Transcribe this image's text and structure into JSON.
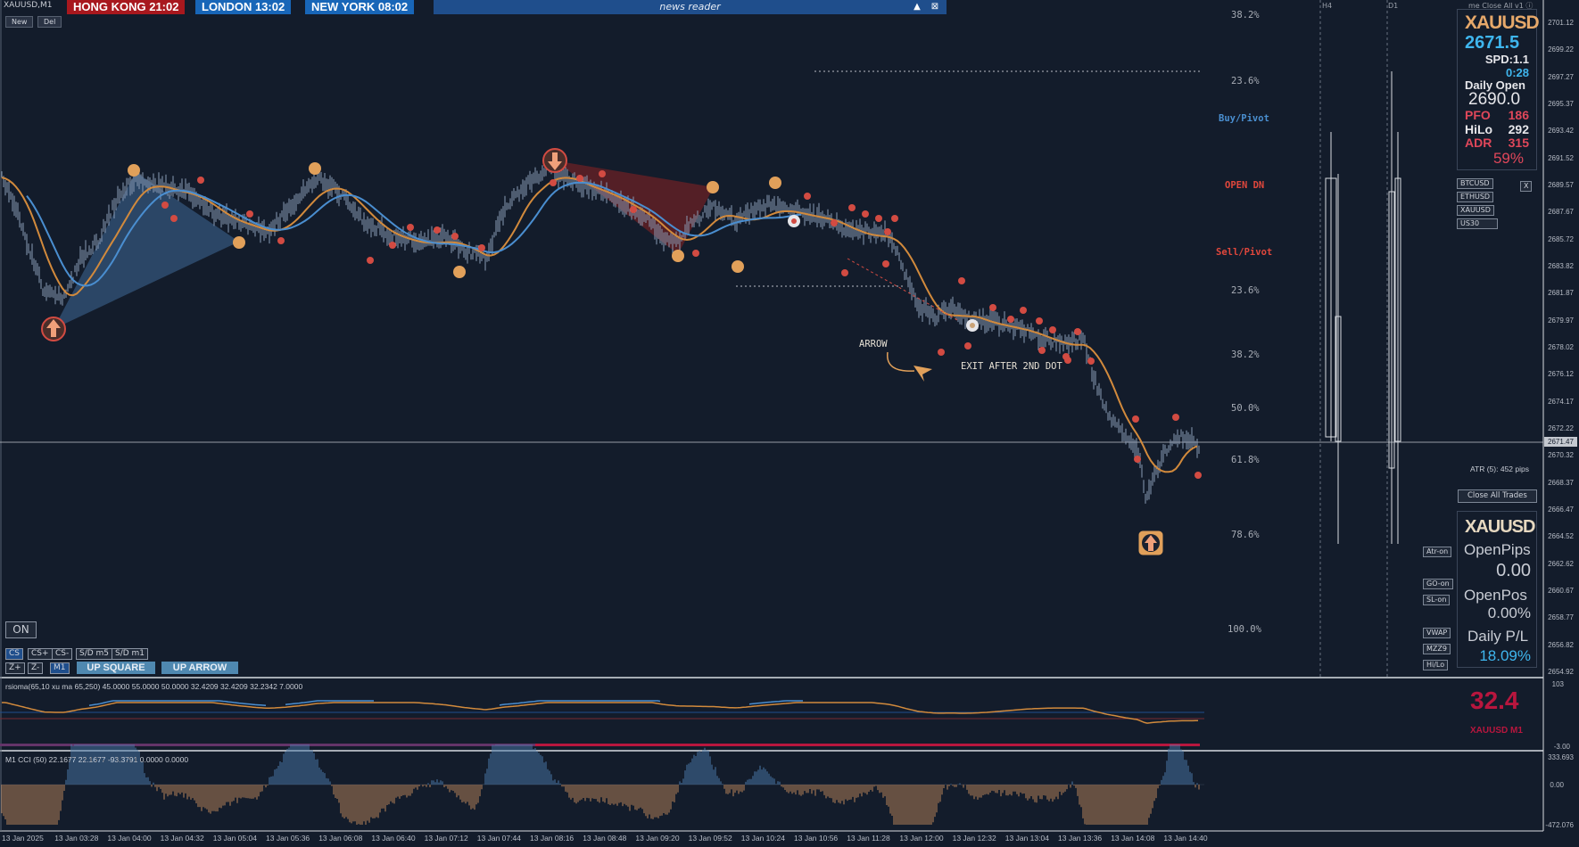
{
  "symbol_tf": "XAUUSD,M1",
  "sessions": [
    {
      "label": "HONG KONG 21:02",
      "color": "#a8181e"
    },
    {
      "label": "LONDON  13:02",
      "color": "#1866b8"
    },
    {
      "label": "NEW YORK  08:02",
      "color": "#1866b8"
    }
  ],
  "news_title": "news reader",
  "news_buttons": {
    "minimize": "▲",
    "close": "⊠"
  },
  "new_label": "New",
  "del_label": "Del",
  "top_right_text": "me Close All v1 ⓘ",
  "tf_labels": {
    "h4": "H4",
    "d1": "D1"
  },
  "info": {
    "symbol": "XAUUSD",
    "price": "2671.5",
    "spread": "SPD:1.1",
    "timer": "0:28",
    "daily_open_label": "Daily Open",
    "daily_open_value": "2690.0",
    "pfo_label": "PFO",
    "pfo_value": "186",
    "hilo_label": "HiLo",
    "hilo_value": "292",
    "adr_label": "ADR",
    "adr_value": "315",
    "adr_pct": "59%"
  },
  "symbols": [
    "BTCUSD",
    "ETHUSD",
    "XAUUSD",
    "US30"
  ],
  "symbols_close": "X",
  "atr_text": "ATR (5): 452 pips",
  "close_all_trades": "Close All Trades",
  "pos": {
    "symbol": "XAUUSD",
    "open_pips_label": "OpenPips",
    "open_pips_value": "0.00",
    "open_pos_label": "OpenPos",
    "open_pos_value": "0.00%",
    "daily_pl_label": "Daily P/L",
    "daily_pl_value": "18.09%"
  },
  "side_buttons": [
    "Atr-on",
    "GO-on",
    "SL-on",
    "VWAP",
    "MZZ9",
    "Hi/Lo"
  ],
  "fib_levels_upper": [
    "38.2%",
    "23.6%"
  ],
  "pivots": [
    {
      "label": "Buy/Pivot",
      "color": "#4a8fd0"
    },
    {
      "label": "OPEN DN",
      "color": "#e0473c"
    },
    {
      "label": "Sell/Pivot",
      "color": "#e0473c"
    }
  ],
  "fib_levels_lower": [
    "23.6%",
    "38.2%",
    "50.0%",
    "61.8%",
    "78.6%",
    "100.0%"
  ],
  "annotations": {
    "arrow": "ARROW",
    "exit": "EXIT AFTER 2ND DOT"
  },
  "price_ticks": [
    "2701.12",
    "2699.22",
    "2697.27",
    "2695.37",
    "2693.42",
    "2691.52",
    "2689.57",
    "2687.67",
    "2685.72",
    "2683.82",
    "2681.87",
    "2679.97",
    "2678.02",
    "2676.12",
    "2674.17",
    "2672.22",
    "2670.32",
    "2668.37",
    "2666.47",
    "2664.52",
    "2662.62",
    "2660.67",
    "2658.77",
    "2656.82",
    "2654.92"
  ],
  "current_price_tag": "2671.47",
  "on_label": "ON",
  "bottom_buttons_row1": [
    "CS",
    "CS+",
    "CS-",
    "S/D m5",
    "S/D m1"
  ],
  "bottom_buttons_row2": [
    "Z+",
    "Z-",
    "M1"
  ],
  "up_square": "UP SQUARE",
  "up_arrow": "UP ARROW",
  "rsi": {
    "label": "rsioma(65,10 xu ma 65,250) 45.0000 55.0000 50.0000 32.4209 32.4209 32.2342 7.0000",
    "value": "32.4",
    "symbol": "XAUUSD M1",
    "scale_top": "103",
    "scale_bottom": "-3.00"
  },
  "cci": {
    "label": "M1 CCI (50) 22.1677 22.1677 -93.3791 0.0000 0.0000",
    "scale_top": "333.693",
    "scale_mid": "0.00",
    "scale_bottom": "-472.076"
  },
  "time_labels": [
    "13 Jan 2025",
    "13 Jan 03:28",
    "13 Jan 04:00",
    "13 Jan 04:32",
    "13 Jan 05:04",
    "13 Jan 05:36",
    "13 Jan 06:08",
    "13 Jan 06:40",
    "13 Jan 07:12",
    "13 Jan 07:44",
    "13 Jan 08:16",
    "13 Jan 08:48",
    "13 Jan 09:20",
    "13 Jan 09:52",
    "13 Jan 10:24",
    "13 Jan 10:56",
    "13 Jan 11:28",
    "13 Jan 12:00",
    "13 Jan 12:32",
    "13 Jan 13:04",
    "13 Jan 13:36",
    "13 Jan 14:08",
    "13 Jan 14:40"
  ],
  "colors": {
    "background": "#131c2b",
    "ema_fast": "#4a8ed0",
    "ema_slow": "#d28a3c",
    "buy_zone": "#3f6a98",
    "sell_zone": "#6b2026",
    "dot_red": "#d24b42",
    "dot_orange": "#e1a05a",
    "rsi_pink": "#b8163e",
    "cyan": "#3fb6ee"
  }
}
